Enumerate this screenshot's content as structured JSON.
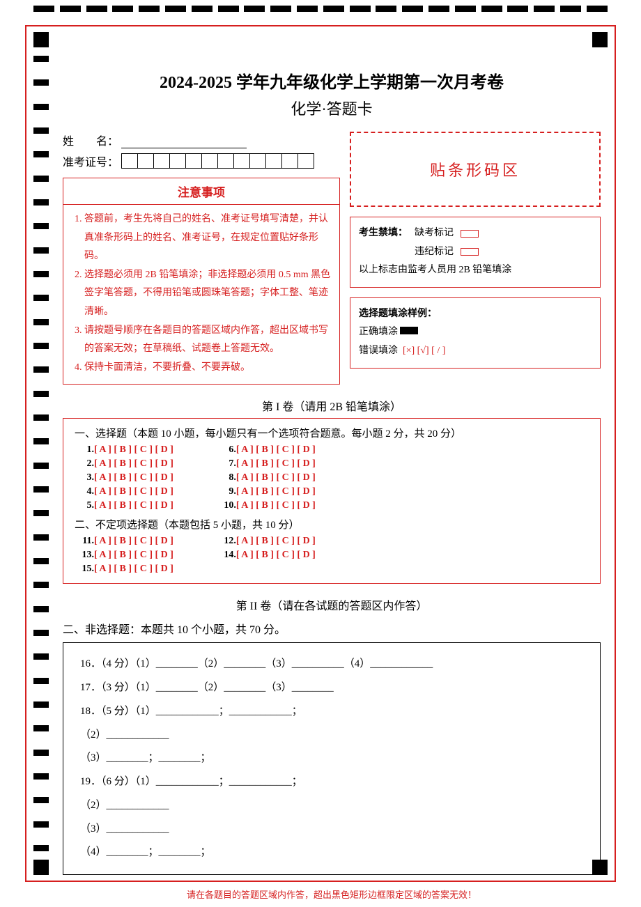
{
  "colors": {
    "accent": "#d61f1f",
    "text": "#000000",
    "bg": "#ffffff"
  },
  "title_line1": "2024-2025 学年九年级化学上学期第一次月考卷",
  "title_line2": "化学·答题卡",
  "name_label": "姓　　名：",
  "idnum_label": "准考证号：",
  "id_box_count": 12,
  "notice_title": "注意事项",
  "notice_items": [
    "答题前，考生先将自己的姓名、准考证号填写清楚，并认真准条形码上的姓名、准考证号，在规定位置贴好条形码。",
    "选择题必须用 2B 铅笔填涂；非选择题必须用 0.5 mm 黑色签字笔答题，不得用铅笔或圆珠笔答题；字体工整、笔迹清晰。",
    "请按题号顺序在各题目的答题区域内作答，超出区域书写的答案无效；在草稿纸、试题卷上答题无效。",
    "保持卡面清洁，不要折叠、不要弄破。"
  ],
  "barcode_label": "贴条形码区",
  "studmark": {
    "header": "考生禁填：",
    "absent": "缺考标记",
    "violation": "违纪标记",
    "note": "以上标志由监考人员用 2B 铅笔填涂"
  },
  "sample": {
    "header": "选择题填涂样例：",
    "correct": "正确填涂",
    "wrong_label": "错误填涂",
    "wrong_marks": "[×]  [√]  [ / ]"
  },
  "part1_label": "第 I 卷（请用 2B 铅笔填涂）",
  "mc_section1_title": "一、选择题（本题 10 小题，每小题只有一个选项符合题意。每小题 2 分，共 20 分）",
  "mc_section2_title": "二、不定项选择题（本题包括 5 小题，共 10 分）",
  "mc_options": "[ A ] [ B ] [ C ] [ D ]",
  "mc_col1": [
    "1.",
    "2.",
    "3.",
    "4.",
    "5."
  ],
  "mc_col2": [
    "6.",
    "7.",
    "8.",
    "9.",
    "10."
  ],
  "mc2_col1": [
    "11.",
    "13.",
    "15."
  ],
  "mc2_col2": [
    "12.",
    "14."
  ],
  "part2_label": "第 II 卷（请在各试题的答题区内作答）",
  "frq_header": "二、非选择题：本题共 10 个小题，共 70 分。",
  "frq_lines": [
    "16．（4 分）（1）________（2）________（3）__________（4）____________",
    "17．（3 分）（1）________（2）________（3）________",
    "18．（5 分）（1）____________；____________；",
    "（2）____________",
    "（3）________；________；",
    "19．（6 分）（1）____________；____________；",
    "（2）____________",
    "（3）____________",
    "（4）________；________；"
  ],
  "footer_warning": "请在各题目的答题区域内作答，超出黑色矩形边框限定区域的答案无效！",
  "typography": {
    "title_fontsize": 24,
    "body_fontsize": 15,
    "small_fontsize": 14
  }
}
